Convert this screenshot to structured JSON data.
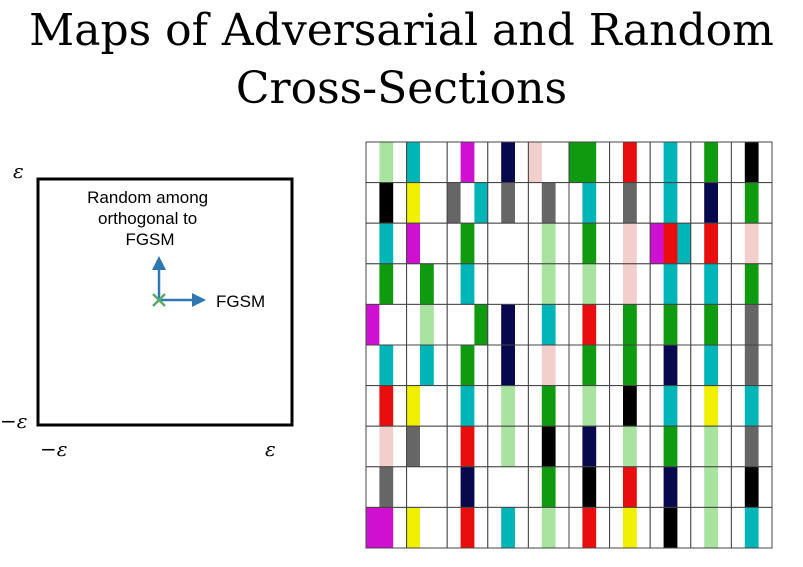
{
  "title": {
    "line1": "Maps of Adversarial and Random",
    "line2": "Cross-Sections"
  },
  "diagram": {
    "eps_top": "ε",
    "eps_bottom_left": "−ε",
    "eps_x_left": "−ε",
    "eps_x_right": "ε",
    "vertical_label": [
      "Random among",
      "orthogonal to",
      "FGSM"
    ],
    "horizontal_label": "FGSM",
    "arrow_color": "#2e77b0",
    "origin_color": "#5aa86a"
  },
  "palette": {
    "W": "#ffffff",
    "L": "#a8e4a0",
    "T": "#00b5b8",
    "M": "#d010d0",
    "N": "#08084e",
    "P": "#f2cfcb",
    "G": "#0f9b0f",
    "R": "#e90d0d",
    "K": "#000000",
    "D": "#666666",
    "Y": "#f0f000"
  },
  "grid": {
    "rows": 10,
    "cols": 10,
    "cells": [
      [
        "WLW",
        "TWW",
        "WMW",
        "WNW",
        "PWW",
        "GGW",
        "WRW",
        "WTW",
        "WGW",
        "WKW"
      ],
      [
        "WKW",
        "YWW",
        "DWT",
        "WDW",
        "WDW",
        "WTW",
        "WDW",
        "WTW",
        "WNW",
        "WGW"
      ],
      [
        "WTW",
        "MWW",
        "WGW",
        "WWW",
        "WLW",
        "WGW",
        "WPW",
        "MRT",
        "WRW",
        "WPW"
      ],
      [
        "WGW",
        "WGW",
        "WTW",
        "WWW",
        "WLW",
        "WLW",
        "WPW",
        "WTW",
        "WTW",
        "WGW"
      ],
      [
        "MWW",
        "WLW",
        "WWG",
        "WNW",
        "WTW",
        "WRW",
        "WGW",
        "WGW",
        "WGW",
        "WDW"
      ],
      [
        "WTW",
        "WTW",
        "WGW",
        "WNW",
        "WPW",
        "WGW",
        "WGW",
        "WNW",
        "WTW",
        "WDW"
      ],
      [
        "WRW",
        "YWW",
        "WTW",
        "WLW",
        "WGW",
        "WLW",
        "WKW",
        "WTW",
        "WYW",
        "WTW"
      ],
      [
        "WPW",
        "DWW",
        "WRW",
        "WLW",
        "WKW",
        "WNW",
        "WLW",
        "WGW",
        "WLW",
        "WDW"
      ],
      [
        "WDW",
        "WWW",
        "WNW",
        "WWW",
        "WGW",
        "WKW",
        "WRW",
        "WNW",
        "WLW",
        "WKW"
      ],
      [
        "MMW",
        "YWW",
        "WRW",
        "WTW",
        "WLW",
        "WRW",
        "WYW",
        "WKW",
        "WLW",
        "WTW"
      ]
    ]
  }
}
